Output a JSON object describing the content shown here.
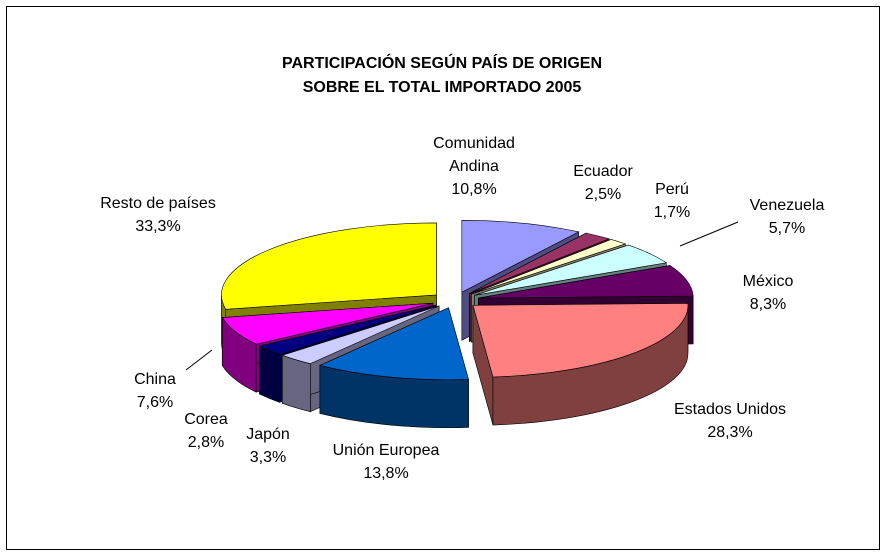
{
  "chart_data": {
    "type": "pie",
    "title": [
      "PARTICIPACIÓN SEGÚN PAÍS DE ORIGEN",
      "SOBRE EL TOTAL IMPORTADO 2005"
    ],
    "categories": [
      "Comunidad Andina",
      "Ecuador",
      "Perú",
      "Venezuela",
      "México",
      "Estados Unidos",
      "Unión Europea",
      "Japón",
      "Corea",
      "China",
      "Resto de países"
    ],
    "values": [
      10.8,
      2.5,
      1.7,
      5.7,
      8.3,
      28.3,
      13.8,
      3.3,
      2.8,
      7.6,
      33.3
    ],
    "value_labels": [
      "10,8%",
      "2,5%",
      "1,7%",
      "5,7%",
      "8,3%",
      "28,3%",
      "13,8%",
      "3,3%",
      "2,8%",
      "7,6%",
      "33,3%"
    ],
    "colors": [
      "#9999ff",
      "#993366",
      "#ffffcc",
      "#ccffff",
      "#660066",
      "#ff8080",
      "#0066cc",
      "#ccccff",
      "#000080",
      "#ff00ff",
      "#ffff00"
    ]
  }
}
